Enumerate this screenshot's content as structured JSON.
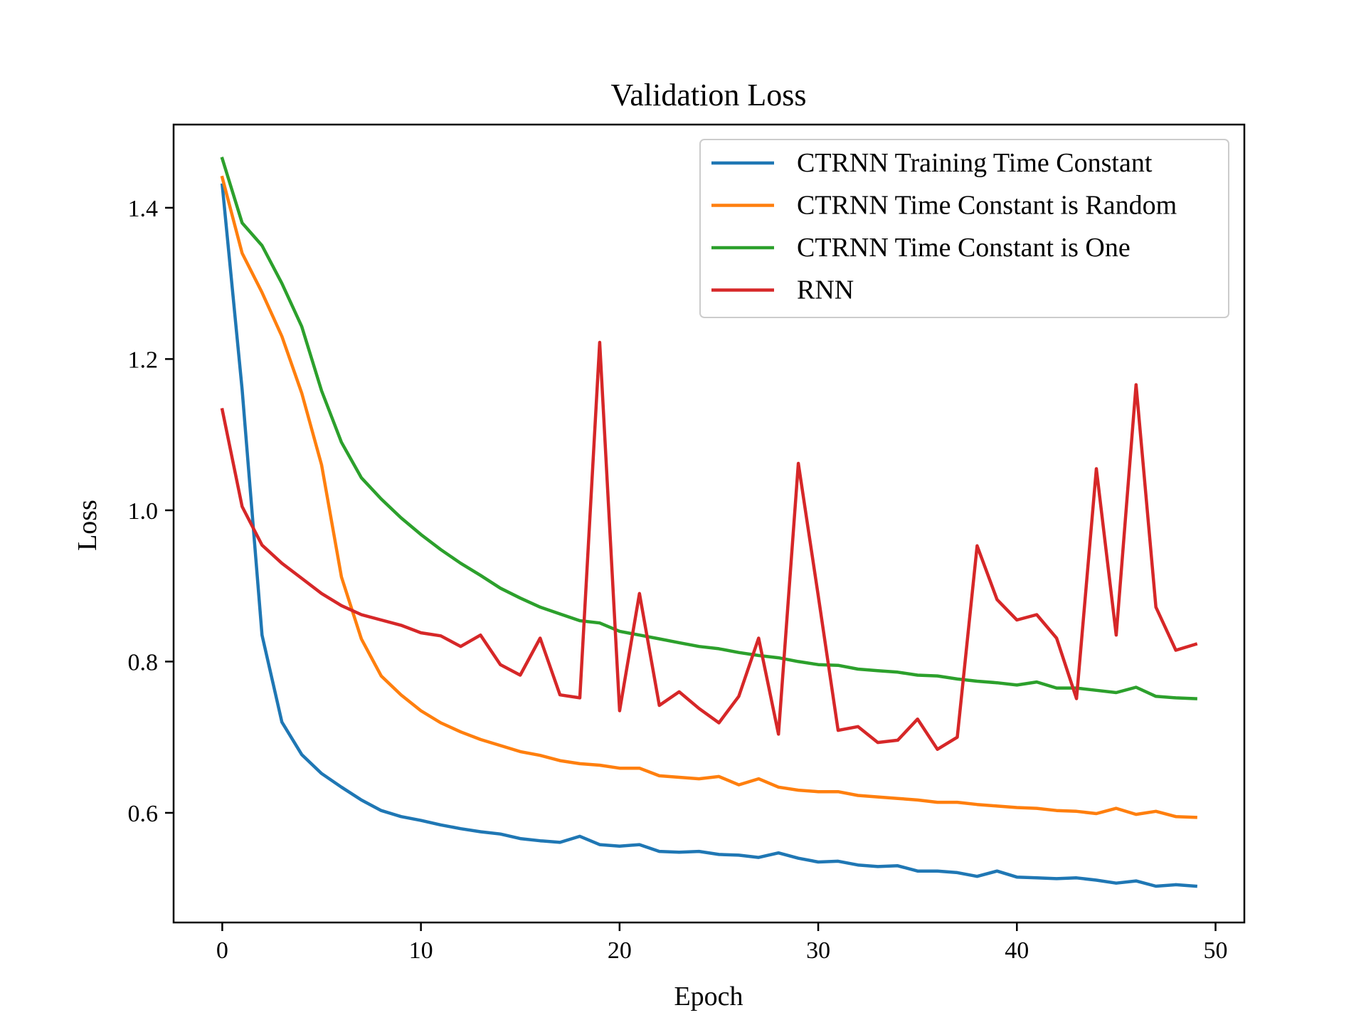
{
  "chart_data": {
    "type": "line",
    "title": "Validation Loss",
    "xlabel": "Epoch",
    "ylabel": "Loss",
    "xlim": [
      -2.45,
      51.45
    ],
    "ylim": [
      0.455,
      1.51
    ],
    "xticks": [
      0,
      10,
      20,
      30,
      40,
      50
    ],
    "yticks": [
      0.6,
      0.8,
      1.0,
      1.2,
      1.4
    ],
    "xtick_labels": [
      "0",
      "10",
      "20",
      "30",
      "40",
      "50"
    ],
    "ytick_labels": [
      "0.6",
      "0.8",
      "1.0",
      "1.2",
      "1.4"
    ],
    "grid": false,
    "legend_position": "top-right",
    "x": [
      0,
      1,
      2,
      3,
      4,
      5,
      6,
      7,
      8,
      9,
      10,
      11,
      12,
      13,
      14,
      15,
      16,
      17,
      18,
      19,
      20,
      21,
      22,
      23,
      24,
      25,
      26,
      27,
      28,
      29,
      30,
      31,
      32,
      33,
      34,
      35,
      36,
      37,
      38,
      39,
      40,
      41,
      42,
      43,
      44,
      45,
      46,
      47,
      48,
      49
    ],
    "series": [
      {
        "name": "CTRNN Training Time Constant",
        "color": "#1f77b4",
        "values": [
          1.43,
          1.16,
          0.835,
          0.72,
          0.677,
          0.652,
          0.634,
          0.617,
          0.603,
          0.595,
          0.59,
          0.584,
          0.579,
          0.575,
          0.572,
          0.566,
          0.563,
          0.561,
          0.569,
          0.558,
          0.556,
          0.558,
          0.549,
          0.548,
          0.549,
          0.545,
          0.544,
          0.541,
          0.547,
          0.54,
          0.535,
          0.536,
          0.531,
          0.529,
          0.53,
          0.523,
          0.523,
          0.521,
          0.516,
          0.523,
          0.515,
          0.514,
          0.513,
          0.514,
          0.511,
          0.507,
          0.51,
          0.503,
          0.505,
          0.503
        ]
      },
      {
        "name": "CTRNN Time Constant is Random",
        "color": "#ff7f0e",
        "values": [
          1.44,
          1.34,
          1.288,
          1.23,
          1.155,
          1.06,
          0.912,
          0.83,
          0.781,
          0.756,
          0.735,
          0.719,
          0.707,
          0.697,
          0.689,
          0.681,
          0.676,
          0.669,
          0.665,
          0.663,
          0.659,
          0.659,
          0.649,
          0.647,
          0.645,
          0.648,
          0.637,
          0.645,
          0.634,
          0.63,
          0.628,
          0.628,
          0.623,
          0.621,
          0.619,
          0.617,
          0.614,
          0.614,
          0.611,
          0.609,
          0.607,
          0.606,
          0.603,
          0.602,
          0.599,
          0.606,
          0.598,
          0.602,
          0.595,
          0.594
        ]
      },
      {
        "name": "CTRNN Time Constant is One",
        "color": "#2ca02c",
        "values": [
          1.465,
          1.38,
          1.35,
          1.3,
          1.243,
          1.158,
          1.09,
          1.043,
          1.015,
          0.99,
          0.968,
          0.948,
          0.93,
          0.914,
          0.897,
          0.884,
          0.872,
          0.863,
          0.854,
          0.851,
          0.84,
          0.835,
          0.83,
          0.825,
          0.82,
          0.817,
          0.812,
          0.808,
          0.805,
          0.8,
          0.796,
          0.795,
          0.79,
          0.788,
          0.786,
          0.782,
          0.781,
          0.777,
          0.774,
          0.772,
          0.769,
          0.773,
          0.765,
          0.765,
          0.762,
          0.759,
          0.766,
          0.754,
          0.752,
          0.751
        ]
      },
      {
        "name": "RNN",
        "color": "#d62728",
        "values": [
          1.133,
          1.005,
          0.954,
          0.93,
          0.91,
          0.89,
          0.874,
          0.862,
          0.855,
          0.848,
          0.838,
          0.834,
          0.82,
          0.835,
          0.796,
          0.782,
          0.831,
          0.756,
          0.752,
          1.222,
          0.735,
          0.89,
          0.742,
          0.76,
          0.738,
          0.719,
          0.754,
          0.831,
          0.704,
          1.062,
          0.887,
          0.709,
          0.714,
          0.693,
          0.696,
          0.724,
          0.684,
          0.7,
          0.953,
          0.882,
          0.855,
          0.862,
          0.831,
          0.751,
          1.055,
          0.835,
          1.166,
          0.872,
          0.815,
          0.823
        ]
      }
    ]
  }
}
